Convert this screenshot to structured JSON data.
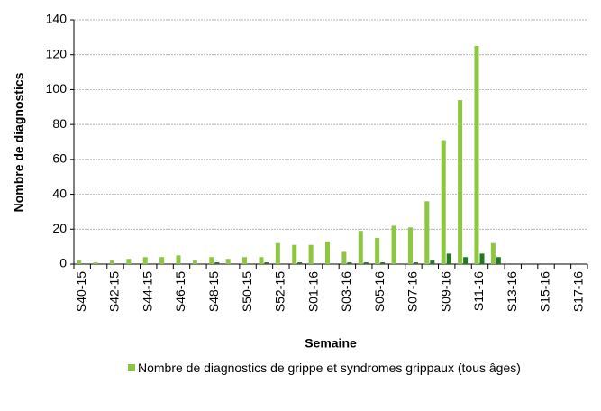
{
  "chart_data": {
    "type": "bar",
    "y_label": "Nombre de diagnostics",
    "x_label": "Semaine",
    "categories": [
      "S40-15",
      null,
      "S42-15",
      null,
      "S44-15",
      null,
      "S46-15",
      null,
      "S48-15",
      null,
      "S50-15",
      null,
      "S52-15",
      null,
      "S01-16",
      null,
      "S03-16",
      null,
      "S05-16",
      null,
      "S07-16",
      null,
      "S09-16",
      null,
      "S11-16",
      null,
      "S13-16",
      null,
      "S15-16",
      null,
      "S17-16"
    ],
    "series": [
      {
        "name": "Nombre de diagnostics de grippe et syndromes grippaux (tous âges)",
        "color": "#8dc63f",
        "values": [
          2,
          1,
          2,
          3,
          4,
          4,
          5,
          2,
          4,
          3,
          4,
          4,
          12,
          11,
          11,
          13,
          7,
          19,
          15,
          22,
          21,
          36,
          71,
          94,
          125,
          12,
          0,
          0,
          0,
          0,
          0
        ]
      },
      {
        "color": "#1f7a1f",
        "values": [
          0,
          0,
          0,
          0,
          0,
          0,
          0,
          0,
          1,
          0,
          0,
          1,
          0,
          1,
          0,
          0,
          1,
          1,
          1,
          0,
          1,
          2,
          6,
          4,
          6,
          4,
          0,
          0,
          0,
          0,
          0
        ]
      }
    ],
    "ylim": [
      0,
      140
    ],
    "yticks": [
      0,
      20,
      40,
      60,
      80,
      100,
      120,
      140
    ],
    "grid": true
  }
}
